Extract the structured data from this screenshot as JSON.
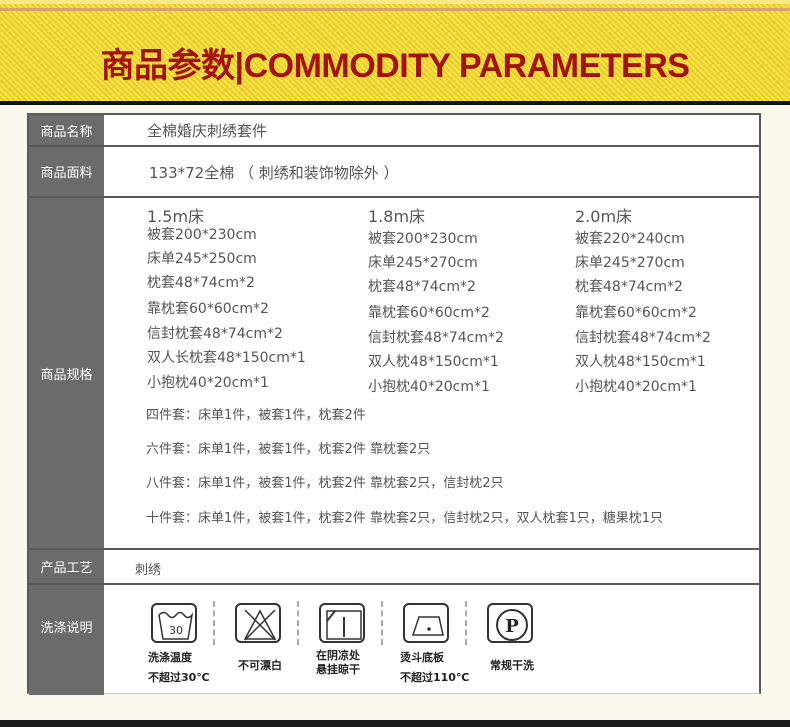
{
  "header": {
    "title": "商品参数|COMMODITY PARAMETERS"
  },
  "rows": {
    "name": {
      "label": "商品名称",
      "value": "全棉婚庆刺绣套件"
    },
    "fabric": {
      "label": "商品面料",
      "value": "133*72全棉 （ 刺绣和装饰物除外 ）"
    },
    "spec": {
      "label": "商品规格",
      "columns": [
        {
          "size": "1.5m床",
          "items": [
            "被套200*230cm",
            "床单245*250cm",
            "枕套48*74cm*2",
            "靠枕套60*60cm*2",
            "信封枕套48*74cm*2",
            "双人长枕套48*150cm*1",
            "小抱枕40*20cm*1"
          ]
        },
        {
          "size": "1.8m床",
          "items": [
            "被套200*230cm",
            "床单245*270cm",
            "枕套48*74cm*2",
            "靠枕套60*60cm*2",
            "信封枕套48*74cm*2",
            "双人枕48*150cm*1",
            "小抱枕40*20cm*1"
          ]
        },
        {
          "size": "2.0m床",
          "items": [
            "被套220*240cm",
            "床单245*270cm",
            "枕套48*74cm*2",
            "靠枕套60*60cm*2",
            "信封枕套48*74cm*2",
            "双人枕48*150cm*1",
            "小抱枕40*20cm*1"
          ]
        }
      ],
      "sets": [
        "四件套：床单1件，被套1件，枕套2件",
        "六件套：床单1件，被套1件，枕套2件 靠枕套2只",
        "八件套：床单1件，被套1件，枕套2件 靠枕套2只，信封枕2只",
        "十件套：床单1件，被套1件，枕套2件 靠枕套2只，信封枕2只，双人枕套1只，糖果枕1只"
      ]
    },
    "craft": {
      "label": "产品工艺",
      "value": "刺绣"
    },
    "wash": {
      "label": "洗涤说明",
      "items": [
        {
          "icon": "wash-30-icon",
          "symbol": "30",
          "line1": "洗涤温度",
          "line2": "不超过30℃"
        },
        {
          "icon": "no-bleach-icon",
          "line1": "不可漂白",
          "line2": ""
        },
        {
          "icon": "line-dry-shade-icon",
          "line1": "在阴凉处",
          "line2": "悬挂晾干"
        },
        {
          "icon": "iron-low-icon",
          "line1": "烫斗底板",
          "line2": "不超过110℃"
        },
        {
          "icon": "dry-clean-p-icon",
          "symbol": "P",
          "line1": "常规干洗",
          "line2": ""
        }
      ]
    }
  }
}
